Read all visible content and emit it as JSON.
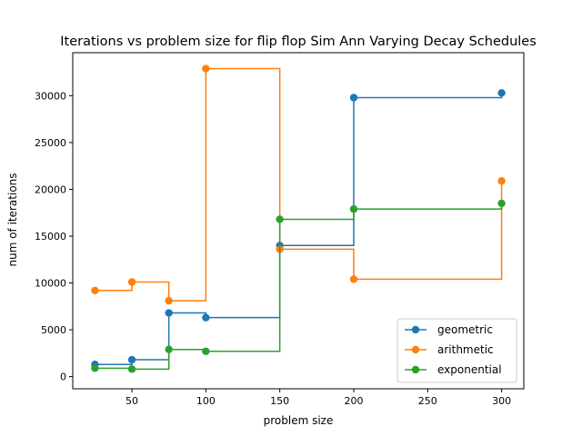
{
  "chart_data": {
    "type": "line",
    "step": "post",
    "title": "Iterations vs problem size for flip flop Sim Ann Varying Decay Schedules",
    "xlabel": "problem size",
    "ylabel": "num of iterations",
    "xlim": [
      10,
      315
    ],
    "ylim": [
      -1300,
      34600
    ],
    "xticks": [
      50,
      100,
      150,
      200,
      250,
      300
    ],
    "yticks": [
      0,
      5000,
      10000,
      15000,
      20000,
      25000,
      30000
    ],
    "grid": false,
    "legend_position": "lower right",
    "x": [
      25,
      50,
      75,
      100,
      150,
      200,
      300
    ],
    "series": [
      {
        "name": "geometric",
        "color": "#1f77b4",
        "values": [
          1300,
          1800,
          6800,
          6300,
          14000,
          29800,
          30300
        ]
      },
      {
        "name": "arithmetic",
        "color": "#ff7f0e",
        "values": [
          9200,
          10100,
          8100,
          32900,
          13600,
          10400,
          20900
        ]
      },
      {
        "name": "exponential",
        "color": "#2ca02c",
        "values": [
          900,
          800,
          2900,
          2700,
          16800,
          17900,
          18500
        ]
      }
    ]
  }
}
